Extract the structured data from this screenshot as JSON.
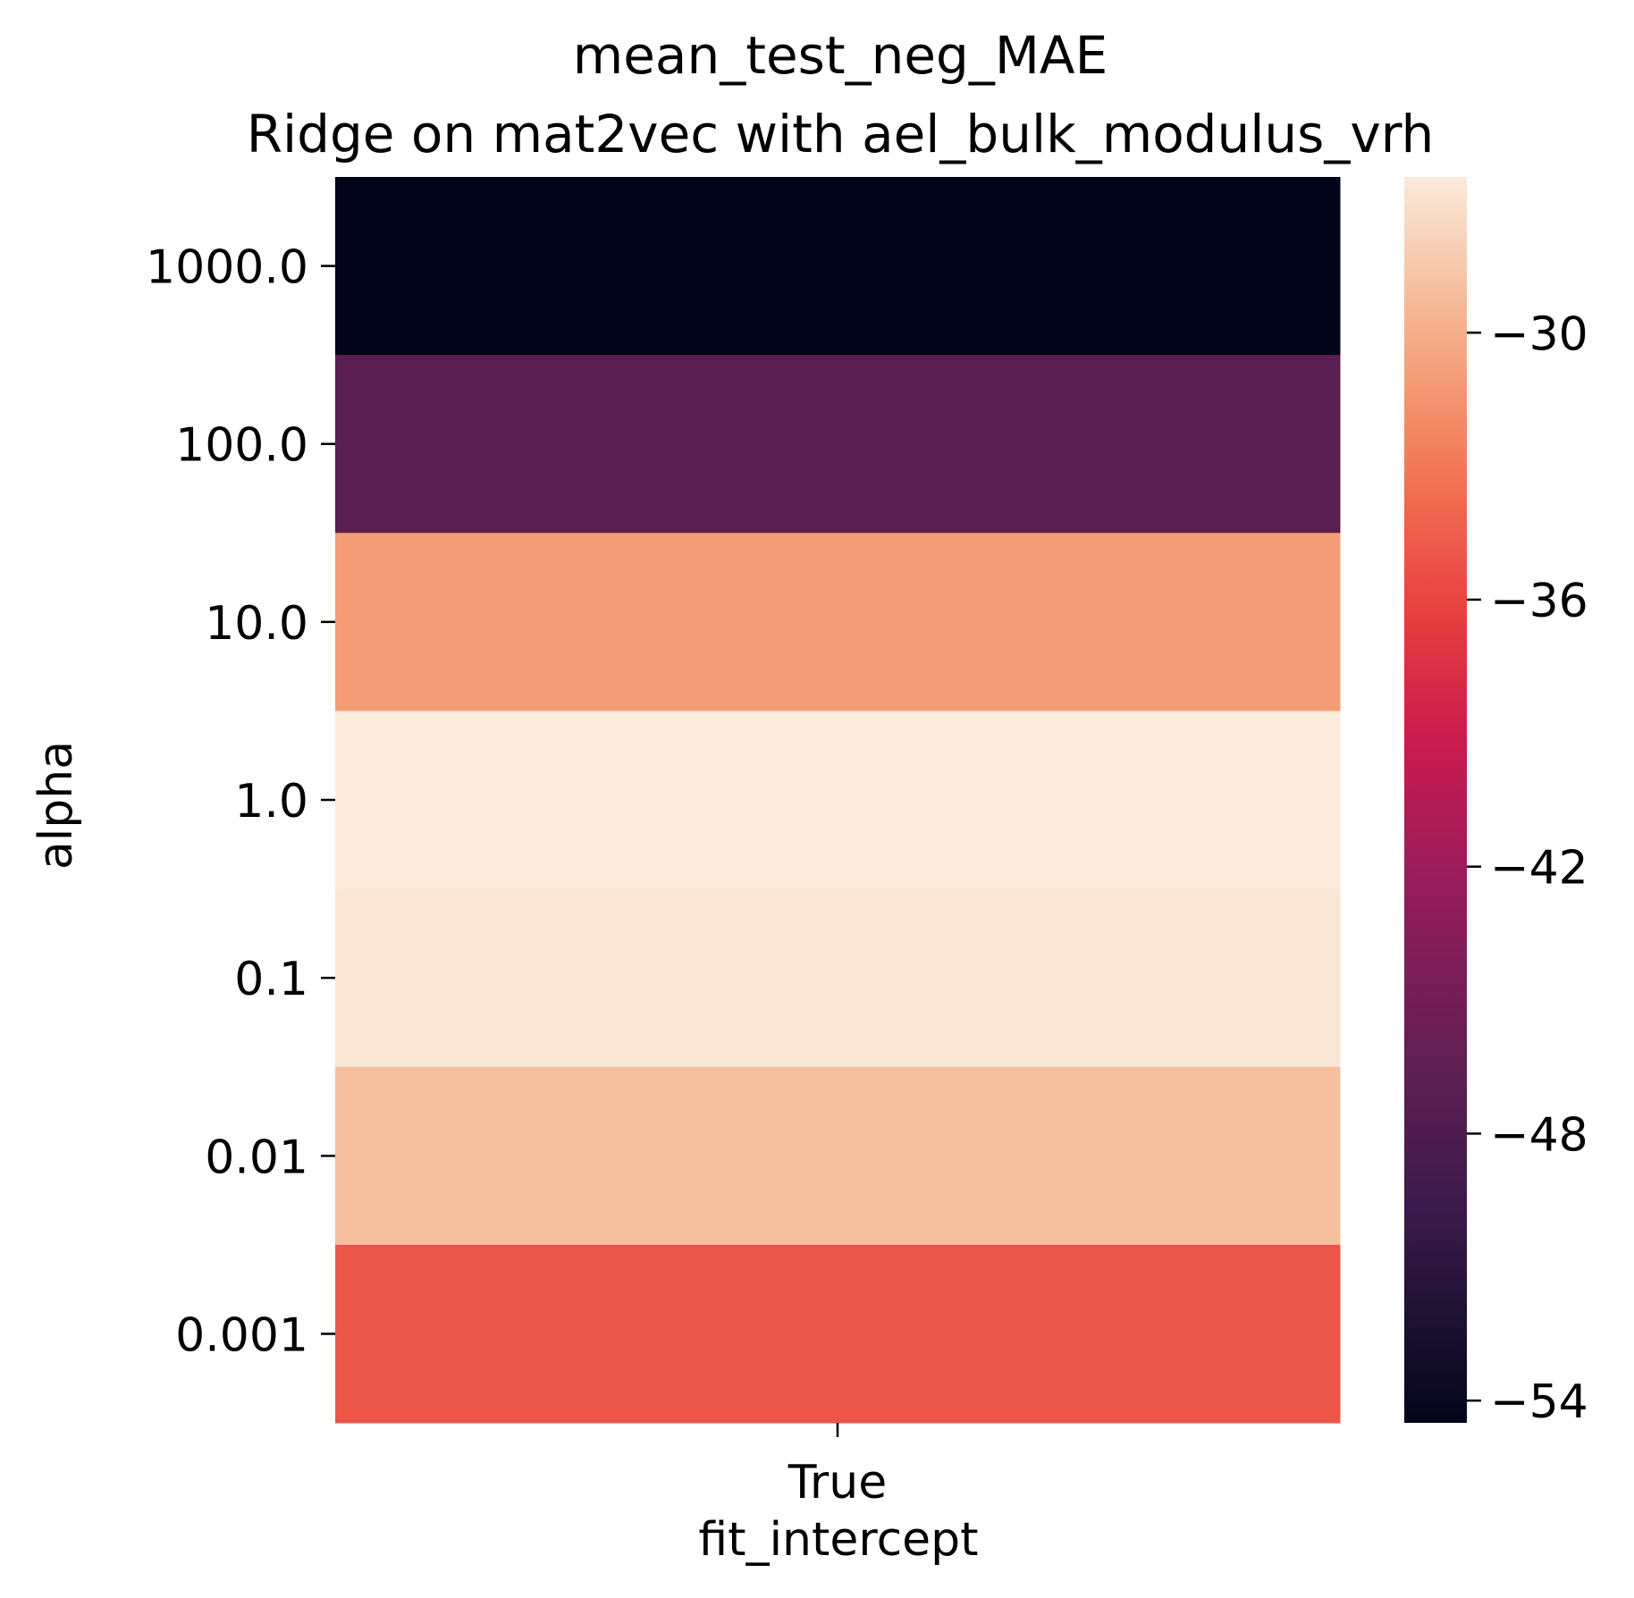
{
  "chart_data": {
    "type": "heatmap",
    "title": "mean_test_neg_MAE",
    "subtitle": "Ridge on mat2vec with ael_bulk_modulus_vrh",
    "xlabel": "fit_intercept",
    "ylabel": "alpha",
    "x_categories": [
      "True"
    ],
    "y_categories": [
      "1000.0",
      "100.0",
      "10.0",
      "1.0",
      "0.1",
      "0.01",
      "0.001"
    ],
    "values": [
      [
        -54.5
      ],
      [
        -47.0
      ],
      [
        -31.0
      ],
      [
        -26.5
      ],
      [
        -26.8
      ],
      [
        -29.0
      ],
      [
        -35.0
      ]
    ],
    "colormap": "rocket",
    "colorbar": {
      "range": [
        -54.5,
        -26.5
      ],
      "ticks": [
        -30,
        -36,
        -42,
        -48,
        -54
      ],
      "tick_labels": [
        "−30",
        "−36",
        "−42",
        "−48",
        "−54"
      ]
    },
    "grid": false,
    "legend": "none"
  }
}
